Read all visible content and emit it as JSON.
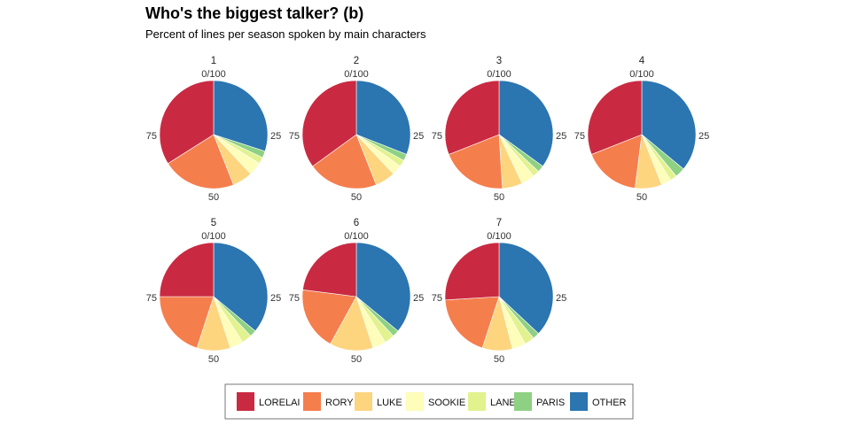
{
  "chart_data": {
    "type": "pie",
    "title": "Who's the biggest talker? (b)",
    "subtitle": "Percent of lines per season spoken by main characters",
    "angular_axis_labels": [
      "0/100",
      "25",
      "50",
      "75"
    ],
    "legend": [
      "LORELAI",
      "RORY",
      "LUKE",
      "SOOKIE",
      "LANE",
      "PARIS",
      "OTHER"
    ],
    "colors": {
      "LORELAI": "#C92A42",
      "RORY": "#F57E4D",
      "LUKE": "#FDD57F",
      "SOOKIE": "#FEFDB9",
      "LANE": "#E2F28E",
      "PARIS": "#8ED183",
      "OTHER": "#2B75B0"
    },
    "panels": [
      {
        "season": "1",
        "values": {
          "LORELAI": 34,
          "RORY": 22,
          "LUKE": 6,
          "SOOKIE": 4,
          "LANE": 2,
          "PARIS": 2,
          "OTHER": 30
        }
      },
      {
        "season": "2",
        "values": {
          "LORELAI": 35,
          "RORY": 21,
          "LUKE": 6,
          "SOOKIE": 3,
          "LANE": 2,
          "PARIS": 2,
          "OTHER": 31
        }
      },
      {
        "season": "3",
        "values": {
          "LORELAI": 31,
          "RORY": 20,
          "LUKE": 6,
          "SOOKIE": 4,
          "LANE": 2,
          "PARIS": 2,
          "OTHER": 35
        }
      },
      {
        "season": "4",
        "values": {
          "LORELAI": 31,
          "RORY": 17,
          "LUKE": 8,
          "SOOKIE": 3,
          "LANE": 2,
          "PARIS": 3,
          "OTHER": 36
        }
      },
      {
        "season": "5",
        "values": {
          "LORELAI": 25,
          "RORY": 20,
          "LUKE": 10,
          "SOOKIE": 4,
          "LANE": 3,
          "PARIS": 2,
          "OTHER": 36
        }
      },
      {
        "season": "6",
        "values": {
          "LORELAI": 23,
          "RORY": 19,
          "LUKE": 13,
          "SOOKIE": 4,
          "LANE": 3,
          "PARIS": 2,
          "OTHER": 36
        }
      },
      {
        "season": "7",
        "values": {
          "LORELAI": 26,
          "RORY": 19,
          "LUKE": 9,
          "SOOKIE": 4,
          "LANE": 3,
          "PARIS": 2,
          "OTHER": 37
        }
      }
    ]
  }
}
